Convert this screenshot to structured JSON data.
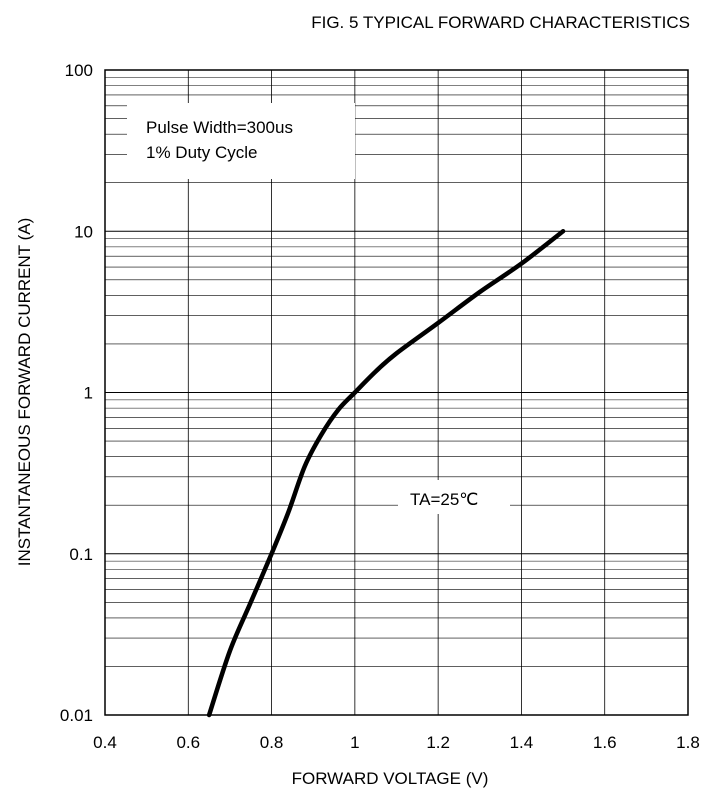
{
  "chart_data": {
    "type": "line",
    "title": "FIG. 5 TYPICAL FORWARD CHARACTERISTICS",
    "xlabel": "FORWARD VOLTAGE (V)",
    "ylabel": "INSTANTANEOUS FORWARD CURRENT (A)",
    "x_scale": "linear",
    "y_scale": "log",
    "xlim": [
      0.4,
      1.8
    ],
    "ylim": [
      0.01,
      100
    ],
    "x_ticks": [
      0.4,
      0.6,
      0.8,
      1.0,
      1.2,
      1.4,
      1.6,
      1.8
    ],
    "x_tick_labels": [
      "0.4",
      "0.6",
      "0.8",
      "1",
      "1.2",
      "1.4",
      "1.6",
      "1.8"
    ],
    "y_ticks": [
      0.01,
      0.1,
      1,
      10,
      100
    ],
    "y_tick_labels": [
      "0.01",
      "0.1",
      "1",
      "10",
      "100"
    ],
    "grid": true,
    "annotations": [
      {
        "text": "Pulse Width=300us"
      },
      {
        "text": "1% Duty Cycle"
      },
      {
        "text": "TA=25℃"
      }
    ],
    "series": [
      {
        "x": [
          0.65,
          0.7,
          0.75,
          0.8,
          0.84,
          0.88,
          0.92,
          0.96,
          1.0,
          1.05,
          1.1,
          1.2,
          1.3,
          1.4,
          1.5
        ],
        "y": [
          0.01,
          0.025,
          0.05,
          0.1,
          0.18,
          0.35,
          0.55,
          0.78,
          1.0,
          1.35,
          1.75,
          2.7,
          4.2,
          6.3,
          10
        ]
      }
    ]
  }
}
